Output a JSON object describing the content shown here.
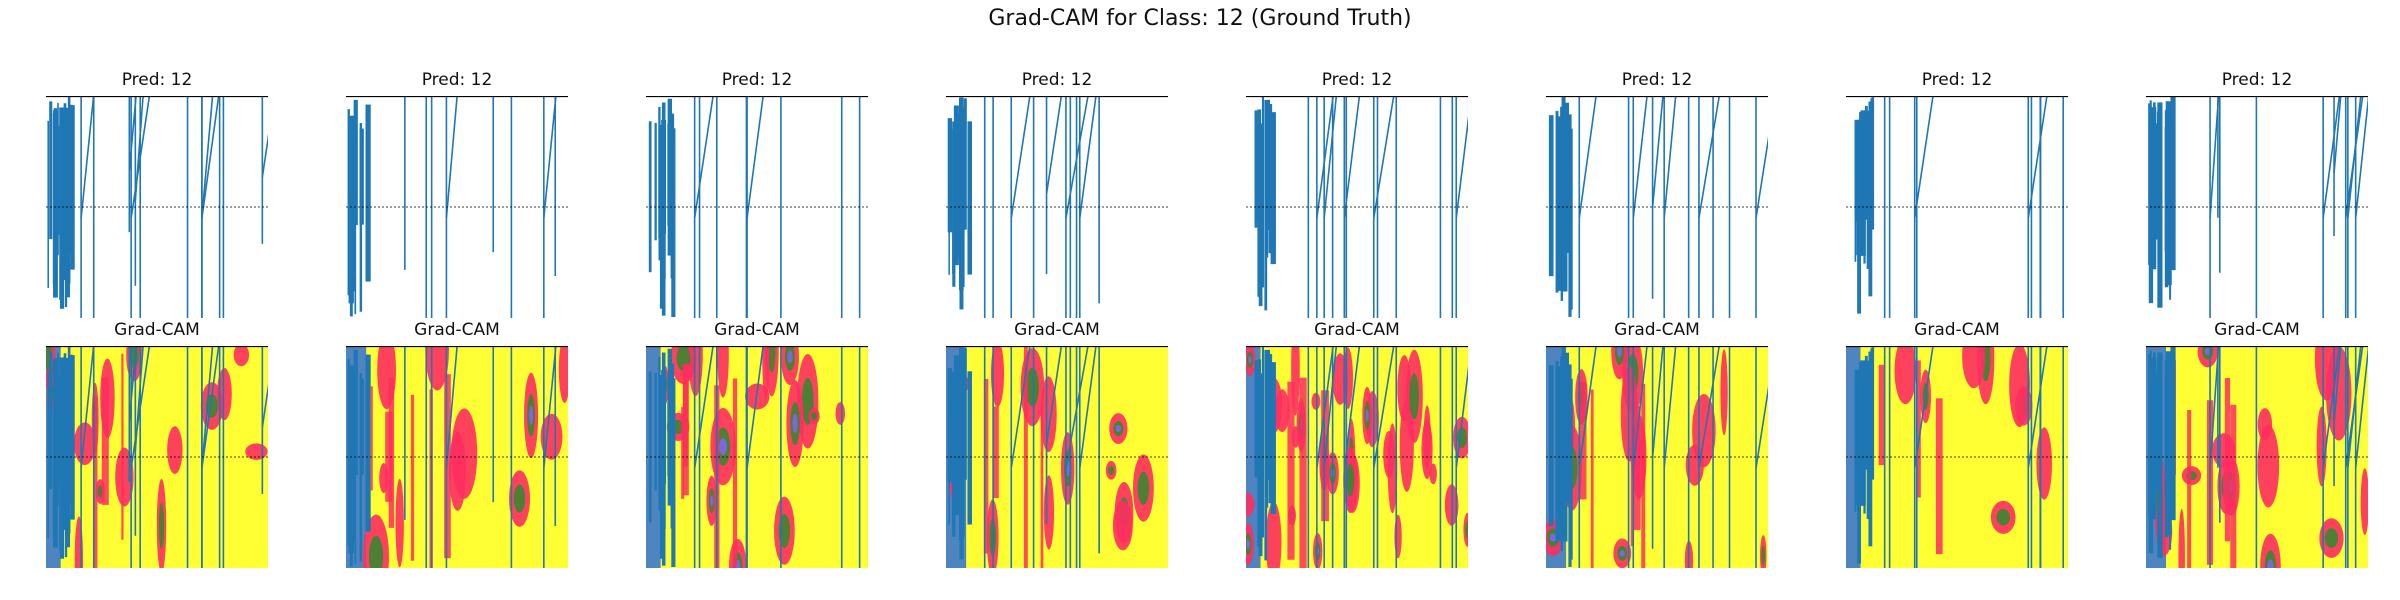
{
  "figure": {
    "title": "Grad-CAM for Class: 12 (Ground Truth)"
  },
  "colors": {
    "signal": "#1f77b4",
    "heat_yellow": "#ffff33",
    "heat_red": "#ff2d60",
    "heat_green": "#2e8b2e",
    "heat_blue": "#2f6fd8",
    "heat_violet": "#7b68ee",
    "line_black": "#000000",
    "background": "#ffffff"
  },
  "chart_data": {
    "type": "grid",
    "rows": 2,
    "columns": 8,
    "row_titles": [
      "Pred: 12",
      "Grad-CAM"
    ],
    "panels": [
      {
        "column": 1,
        "pred_title": "Pred: 12",
        "cam_title": "Grad-CAM"
      },
      {
        "column": 2,
        "pred_title": "Pred: 12",
        "cam_title": "Grad-CAM"
      },
      {
        "column": 3,
        "pred_title": "Pred: 12",
        "cam_title": "Grad-CAM"
      },
      {
        "column": 4,
        "pred_title": "Pred: 12",
        "cam_title": "Grad-CAM"
      },
      {
        "column": 5,
        "pred_title": "Pred: 12",
        "cam_title": "Grad-CAM"
      },
      {
        "column": 6,
        "pred_title": "Pred: 12",
        "cam_title": "Grad-CAM"
      },
      {
        "column": 7,
        "pred_title": "Pred: 12",
        "cam_title": "Grad-CAM"
      },
      {
        "column": 8,
        "pred_title": "Pred: 12",
        "cam_title": "Grad-CAM"
      }
    ],
    "axes": "off",
    "grid": false,
    "legend": "none"
  }
}
